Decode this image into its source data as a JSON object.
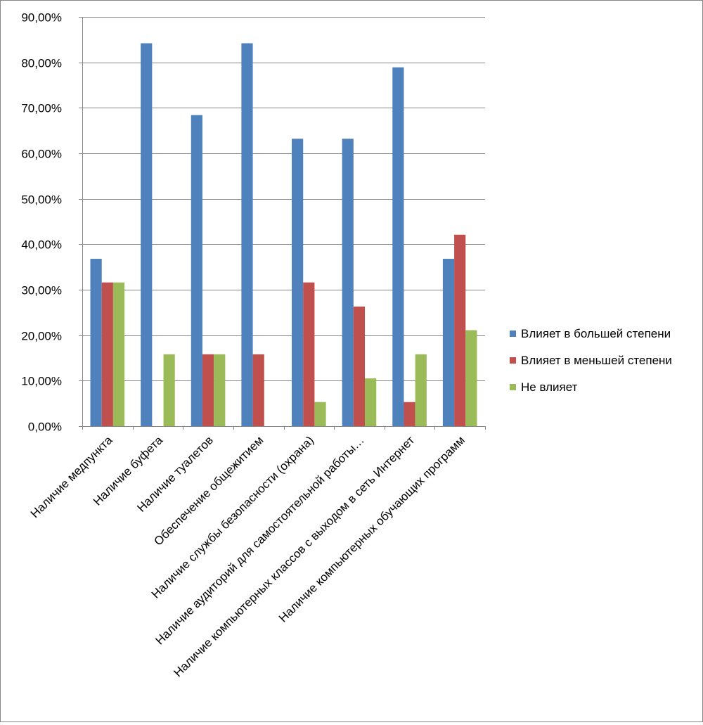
{
  "chart_data": {
    "type": "bar",
    "title": "",
    "xlabel": "",
    "ylabel": "",
    "ylim": [
      0,
      0.9
    ],
    "y_ticks": [
      "0,00%",
      "10,00%",
      "20,00%",
      "30,00%",
      "40,00%",
      "50,00%",
      "60,00%",
      "70,00%",
      "80,00%",
      "90,00%"
    ],
    "grid": "horizontal",
    "legend_position": "right",
    "categories": [
      "Наличие медпункта",
      "Наличие буфета",
      "Наличие туалетов",
      "Обеспечение общежитием",
      "Наличие службы безопасности (охрана)",
      "Наличие аудиторий для самостоятельной работы…",
      "Наличие компьютерных классов с выходом в сеть Интернет",
      "Наличие компьютерных обучающих программ"
    ],
    "series": [
      {
        "name": "Влияет в большей степени",
        "color": "#4F81BD",
        "values": [
          0.368,
          0.842,
          0.684,
          0.842,
          0.632,
          0.632,
          0.789,
          0.368
        ]
      },
      {
        "name": "Влияет в меньшей степени",
        "color": "#C0504D",
        "values": [
          0.316,
          0.0,
          0.158,
          0.158,
          0.316,
          0.263,
          0.053,
          0.421
        ]
      },
      {
        "name": "Не влияет",
        "color": "#9BBB59",
        "values": [
          0.316,
          0.158,
          0.158,
          0.0,
          0.053,
          0.105,
          0.158,
          0.211
        ]
      }
    ]
  }
}
